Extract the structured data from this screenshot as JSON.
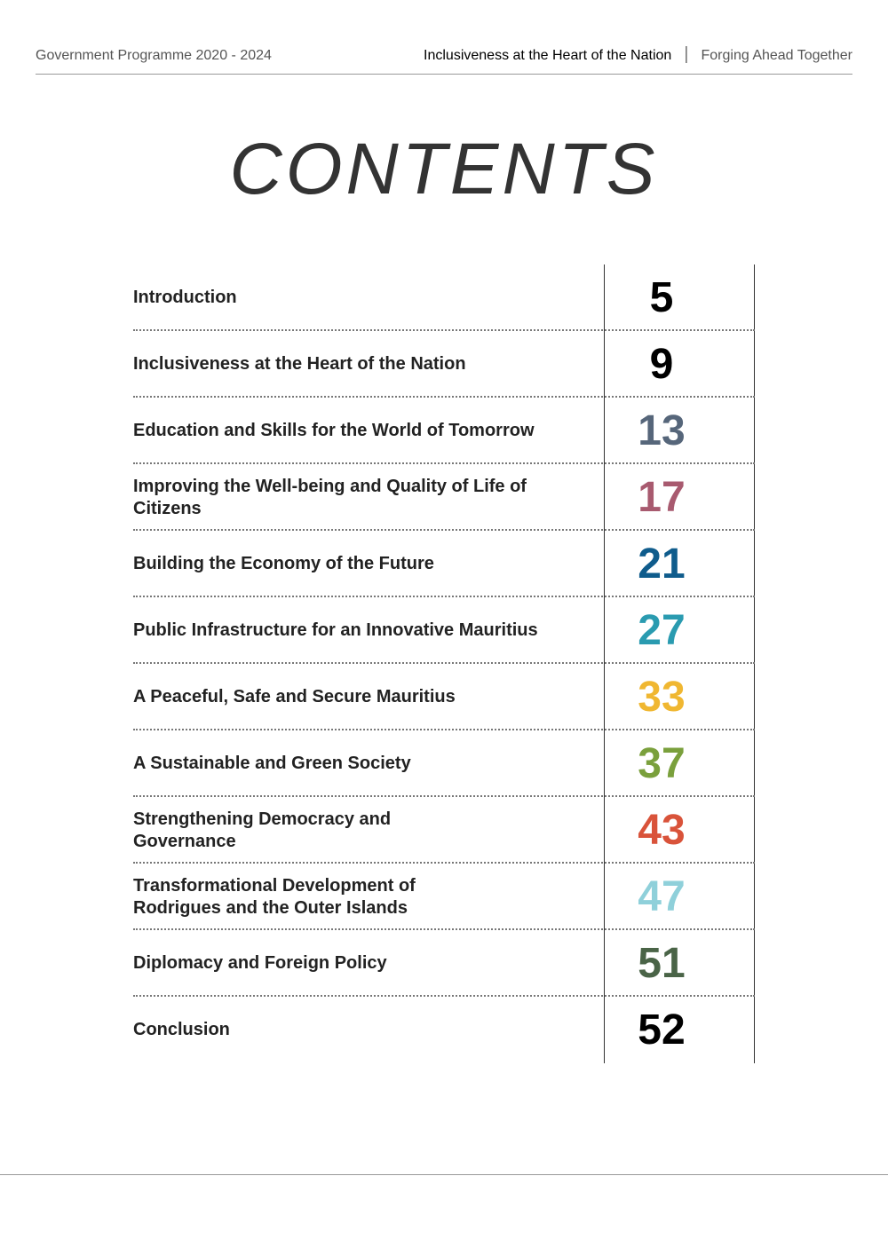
{
  "header": {
    "left": "Government Programme 2020 - 2024",
    "center": "Inclusiveness at the Heart of the Nation",
    "separator": "|",
    "right": "Forging Ahead Together"
  },
  "title": "CONTENTS",
  "toc": {
    "title_color": "#222222",
    "title_fontsize": 20,
    "num_fontsize": 48,
    "vline_color": "#333333",
    "dot_color": "#777777",
    "entries": [
      {
        "label": "Introduction",
        "page": "5",
        "color": "#000000"
      },
      {
        "label": "Inclusiveness at the Heart of the Nation",
        "page": "9",
        "color": "#000000"
      },
      {
        "label": "Education and Skills for the World of Tomorrow",
        "page": "13",
        "color": "#56667a"
      },
      {
        "label": "Improving the Well-being and Quality of Life of Citizens",
        "page": "17",
        "color": "#a85a6f"
      },
      {
        "label": "Building the Economy of the Future",
        "page": "21",
        "color": "#0f5c8c"
      },
      {
        "label": "Public Infrastructure for an Innovative Mauritius",
        "page": "27",
        "color": "#2a9bb0"
      },
      {
        "label": "A Peaceful, Safe and Secure Mauritius",
        "page": "33",
        "color": "#f0b731"
      },
      {
        "label": "A Sustainable and Green Society",
        "page": "37",
        "color": "#7aa03c"
      },
      {
        "label": "Strengthening Democracy and\nGovernance",
        "page": "43",
        "color": "#d9533a"
      },
      {
        "label": "Transformational Development of\nRodrigues and the Outer Islands",
        "page": "47",
        "color": "#8fd0da"
      },
      {
        "label": "Diplomacy and Foreign Policy",
        "page": "51",
        "color": "#4a6447"
      },
      {
        "label": "Conclusion",
        "page": "52",
        "color": "#000000"
      }
    ]
  }
}
